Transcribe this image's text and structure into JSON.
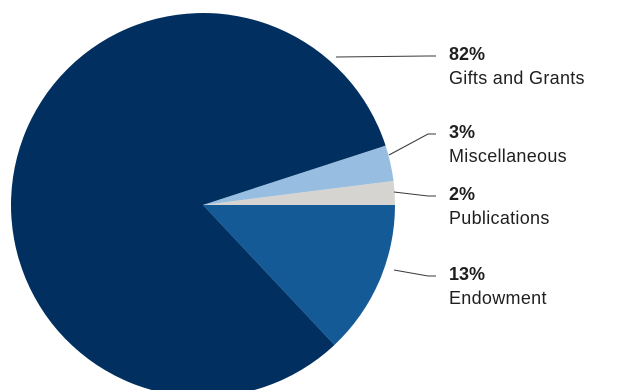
{
  "chart_data": {
    "type": "pie",
    "slices": [
      {
        "label": "Gifts and Grants",
        "value": 82,
        "value_label": "82%",
        "color": "#012f5f"
      },
      {
        "label": "Miscellaneous",
        "value": 3,
        "value_label": "3%",
        "color": "#97bee0"
      },
      {
        "label": "Publications",
        "value": 2,
        "value_label": "2%",
        "color": "#d6d4d0"
      },
      {
        "label": "Endowment",
        "value": 13,
        "value_label": "13%",
        "color": "#145a96"
      }
    ],
    "legend": "right, with leader lines"
  }
}
